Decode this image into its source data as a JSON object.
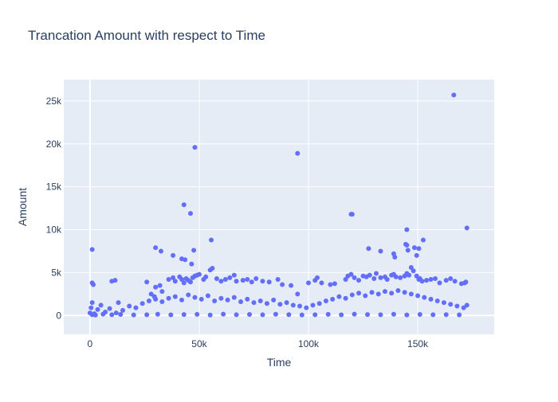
{
  "chart_data": {
    "type": "scatter",
    "title": "Trancation Amount with respect to Time",
    "xlabel": "Time",
    "ylabel": "Amount",
    "xlim": [
      -12000,
      185000
    ],
    "ylim": [
      -2200,
      27500
    ],
    "xticks": [
      0,
      50000,
      100000,
      150000
    ],
    "xtick_labels": [
      "0",
      "50k",
      "100k",
      "150k"
    ],
    "yticks": [
      0,
      5000,
      10000,
      15000,
      20000,
      25000
    ],
    "ytick_labels": [
      "0",
      "5k",
      "10k",
      "15k",
      "20k",
      "25k"
    ],
    "grid": true,
    "marker_color": "#636efa",
    "plot_bg": "#e5ecf6",
    "series": [
      {
        "x": [
          0,
          500,
          1000,
          2000,
          3500,
          5000,
          7000,
          9000,
          12000,
          15000,
          18000,
          21000,
          24000,
          27000,
          30000,
          33000,
          36000,
          39000,
          42000,
          45000,
          48000,
          51000,
          54000,
          57000,
          60000,
          63000,
          66000,
          69000,
          72000,
          75000,
          78000,
          81000,
          84000,
          87000,
          90000,
          93000,
          96000,
          99000,
          102000,
          105000,
          108000,
          111000,
          114000,
          117000,
          120000,
          123000,
          126000,
          129000,
          132000,
          135000,
          138000,
          141000,
          144000,
          147000,
          150000,
          153000,
          156000,
          159000,
          162000,
          165000,
          168000,
          171000,
          172500,
          1000,
          2500,
          6000,
          10000,
          14000,
          20000,
          26000,
          31000,
          37000,
          43000,
          49000,
          55000,
          61000,
          67000,
          73000,
          79000,
          85000,
          91000,
          97000,
          103000,
          109000,
          115000,
          121000,
          127000,
          133000,
          139000,
          145000,
          151000,
          157000,
          163000,
          169000,
          1000,
          1500,
          10000,
          11500,
          13000,
          26000,
          28000,
          29500,
          30000,
          32000,
          33000,
          36000,
          38000,
          39000,
          41000,
          42000,
          43000,
          44000,
          45000,
          46000,
          47000,
          48000,
          49000,
          50000,
          52000,
          53000,
          55000,
          56000,
          58000,
          60000,
          62000,
          64000,
          66000,
          67000,
          70000,
          72000,
          74000,
          76000,
          79000,
          82000,
          86000,
          88000,
          92000,
          95000,
          100000,
          103000,
          104000,
          106000,
          110000,
          112000,
          117000,
          118000,
          119500,
          121000,
          123000,
          125000,
          126500,
          128000,
          130000,
          131000,
          133000,
          135000,
          136000,
          138000,
          139000,
          140000,
          142000,
          144000,
          145000,
          146000,
          147000,
          148000,
          149500,
          150500,
          151000,
          152000,
          154000,
          156000,
          158000,
          160000,
          163000,
          165000,
          167000,
          170000,
          171500,
          172000,
          1000,
          30000,
          32500,
          38000,
          42000,
          43500,
          46500,
          47500,
          55500,
          120000,
          127500,
          133000,
          139000,
          139500,
          144500,
          145000,
          145500,
          148500,
          149500,
          150500,
          152500,
          43000,
          46000,
          48000,
          95000,
          119500,
          145000,
          166500,
          172500
        ],
        "y": [
          300,
          900,
          1500,
          200,
          700,
          1200,
          400,
          800,
          300,
          600,
          1100,
          900,
          1400,
          1700,
          1900,
          1600,
          2000,
          2200,
          1800,
          2400,
          2100,
          1900,
          2300,
          1700,
          2000,
          1800,
          2100,
          1600,
          1900,
          1500,
          1700,
          1400,
          1800,
          1300,
          1500,
          1200,
          1100,
          900,
          1200,
          1400,
          1700,
          1900,
          2200,
          2000,
          2400,
          2600,
          2300,
          2700,
          2500,
          2800,
          2600,
          2900,
          2700,
          2500,
          2300,
          2100,
          1900,
          1700,
          1500,
          1300,
          1100,
          900,
          1200,
          100,
          50,
          150,
          80,
          120,
          60,
          90,
          140,
          70,
          110,
          130,
          50,
          160,
          90,
          120,
          80,
          140,
          100,
          60,
          90,
          130,
          70,
          150,
          110,
          80,
          140,
          60,
          120,
          90,
          100,
          70,
          3800,
          3600,
          4000,
          4100,
          1500,
          3900,
          2500,
          2200,
          3300,
          3500,
          2800,
          4200,
          4400,
          4000,
          4500,
          4200,
          3800,
          4300,
          4100,
          3900,
          4400,
          4600,
          4700,
          4800,
          4200,
          4500,
          5300,
          5500,
          4300,
          4000,
          4200,
          4400,
          4700,
          4000,
          4100,
          4200,
          3900,
          4300,
          4000,
          3900,
          4200,
          3600,
          3500,
          2500,
          3800,
          4100,
          4400,
          3800,
          3600,
          3700,
          4200,
          4600,
          4800,
          4400,
          4100,
          4600,
          4500,
          4700,
          4300,
          4900,
          4400,
          4500,
          4200,
          4700,
          4800,
          4500,
          4400,
          4600,
          4900,
          4700,
          5600,
          5200,
          4600,
          4200,
          4300,
          4000,
          4100,
          4200,
          4300,
          3800,
          4100,
          4300,
          4000,
          3700,
          3800,
          3900,
          7700,
          7900,
          7500,
          7000,
          6600,
          6500,
          6000,
          7600,
          8800,
          11800,
          7800,
          7500,
          7200,
          6800,
          8300,
          10000,
          7600,
          7900,
          7000,
          7800,
          8800,
          12900,
          11900,
          19600,
          18900,
          11800,
          8200,
          25700,
          10200
        ]
      }
    ]
  }
}
